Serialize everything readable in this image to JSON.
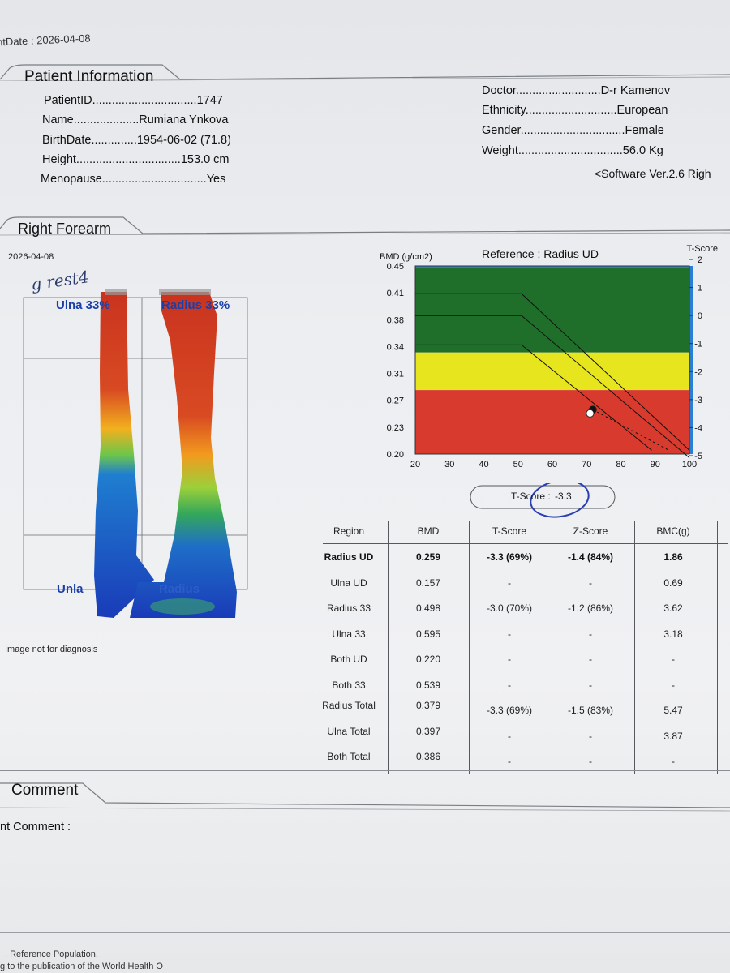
{
  "header": {
    "date_label": "ntDate : 2026-04-08"
  },
  "patient": {
    "section_title": "Patient Information",
    "left": [
      {
        "label": "PatientID",
        "dots": "................................",
        "value": "1747"
      },
      {
        "label": "Name",
        "dots": "....................",
        "value": "Rumiana Ynkova"
      },
      {
        "label": "BirthDate",
        "dots": "..............",
        "value": "1954-06-02 (71.8)"
      },
      {
        "label": "Height",
        "dots": "................................",
        "value": "153.0 cm"
      },
      {
        "label": "Menopause",
        "dots": "................................",
        "value": "Yes"
      }
    ],
    "right": [
      {
        "label": "Doctor",
        "dots": "..........................",
        "value": "D-r Kamenov"
      },
      {
        "label": "Ethnicity",
        "dots": "............................",
        "value": "European"
      },
      {
        "label": "Gender",
        "dots": "................................",
        "value": "Female"
      },
      {
        "label": "Weight",
        "dots": "................................",
        "value": "56.0 Kg"
      }
    ],
    "software": "<Software Ver.2.6  Righ"
  },
  "forearm": {
    "section_title": "Right Forearm",
    "scan_date": "2026-04-08",
    "handwriting": "g rest4",
    "label_ulna33": "Ulna 33%",
    "label_radius33": "Radius 33%",
    "label_ulna_ud": "Unla",
    "label_radius_ud": "Radius",
    "disclaimer": "Image not for diagnosis"
  },
  "chart_data": {
    "type": "scatter",
    "title": "Reference : Radius UD",
    "ylabel": "BMD (g/cm2)",
    "y2label": "T-Score",
    "xlim": [
      20,
      100
    ],
    "ylim": [
      0.2,
      0.45
    ],
    "x_ticks": [
      20,
      30,
      40,
      50,
      60,
      70,
      80,
      90,
      100
    ],
    "y_ticks": [
      "0.45",
      "0.41",
      "0.38",
      "0.34",
      "0.31",
      "0.27",
      "0.23",
      "0.20"
    ],
    "y2_ticks": [
      "2",
      "1",
      "0",
      "-1",
      "-2",
      "-3",
      "-4",
      "-5"
    ],
    "bands": [
      {
        "name": "normal",
        "from": 0.335,
        "to": 0.45,
        "color": "#1f6e2a"
      },
      {
        "name": "osteopenia",
        "from": 0.285,
        "to": 0.335,
        "color": "#e7e51d"
      },
      {
        "name": "osteoporosis",
        "from": 0.2,
        "to": 0.285,
        "color": "#d93a2e"
      }
    ],
    "reference_lines": [
      {
        "points": [
          [
            20,
            0.413
          ],
          [
            51,
            0.413
          ],
          [
            100,
            0.205
          ]
        ]
      },
      {
        "points": [
          [
            20,
            0.384
          ],
          [
            51,
            0.384
          ],
          [
            100,
            0.195
          ]
        ]
      },
      {
        "points": [
          [
            20,
            0.345
          ],
          [
            51,
            0.345
          ],
          [
            89,
            0.205
          ]
        ]
      }
    ],
    "points": [
      {
        "x": 71.8,
        "y": 0.259,
        "color": "#111111"
      },
      {
        "x": 71.0,
        "y": 0.254,
        "color": "#ffffff"
      }
    ],
    "tscore_label": "T-Score :",
    "tscore_value": "-3.3"
  },
  "table": {
    "headers": [
      "Region",
      "BMD",
      "T-Score",
      "Z-Score",
      "BMC(g)"
    ],
    "rows": [
      {
        "region": "Radius UD",
        "bmd": "0.259",
        "t": "-3.3 (69%)",
        "z": "-1.4 (84%)",
        "bmc": "1.86",
        "bold": true
      },
      {
        "region": "Ulna UD",
        "bmd": "0.157",
        "t": "-",
        "z": "-",
        "bmc": "0.69"
      },
      {
        "region": "Radius 33",
        "bmd": "0.498",
        "t": "-3.0 (70%)",
        "z": "-1.2 (86%)",
        "bmc": "3.62"
      },
      {
        "region": "Ulna 33",
        "bmd": "0.595",
        "t": "-",
        "z": "-",
        "bmc": "3.18"
      },
      {
        "region": "Both UD",
        "bmd": "0.220",
        "t": "-",
        "z": "-",
        "bmc": "-"
      },
      {
        "region": "Both 33",
        "bmd": "0.539",
        "t": "-",
        "z": "-",
        "bmc": "-"
      },
      {
        "region": "Radius Total",
        "bmd": "0.379",
        "t": "-3.3 (69%)",
        "z": "-1.5 (83%)",
        "bmc": "5.47"
      },
      {
        "region": "Ulna Total",
        "bmd": "0.397",
        "t": "-",
        "z": "-",
        "bmc": "3.87"
      },
      {
        "region": "Both Total",
        "bmd": "0.386",
        "t": "-",
        "z": "-",
        "bmc": "-"
      }
    ]
  },
  "comment": {
    "section_title": "Comment",
    "label": "nt Comment :"
  },
  "footer": {
    "line1": ". Reference Population.",
    "line2": "g to the publication of the World Health O"
  }
}
